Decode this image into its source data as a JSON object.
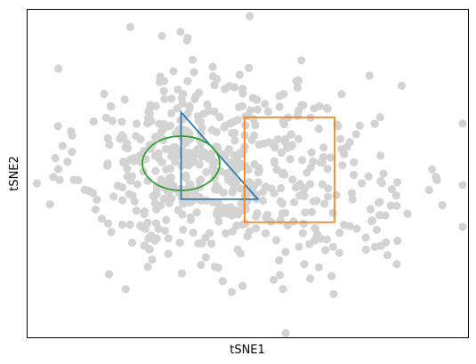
{
  "chart_data": {
    "type": "scatter",
    "xlabel": "tSNE1",
    "ylabel": "tSNE2",
    "axis_ticks": "none",
    "xlim": [
      -3.3,
      3.3
    ],
    "ylim": [
      -3.2,
      3.2
    ],
    "point_color": "#d3d3d3",
    "point_count": 600,
    "series": [
      {
        "n": 380,
        "cx": -0.9,
        "cy": 0.2,
        "sx": 0.8,
        "sy": 0.95
      },
      {
        "n": 220,
        "cx": 0.8,
        "cy": -0.1,
        "sx": 1.15,
        "sy": 1.05
      }
    ],
    "shapes": [
      {
        "kind": "triangle",
        "color": "#1f77b4",
        "points": [
          [
            -1.0,
            1.2
          ],
          [
            -1.0,
            -0.5
          ],
          [
            0.15,
            -0.5
          ]
        ]
      },
      {
        "kind": "rectangle",
        "color": "#ff7f0e",
        "x": [
          -0.05,
          1.3
        ],
        "y": [
          -0.95,
          1.1
        ]
      },
      {
        "kind": "ellipse",
        "color": "#2ca02c",
        "center": [
          -1.0,
          0.2
        ],
        "rx": 0.58,
        "ry": 0.53
      }
    ]
  }
}
